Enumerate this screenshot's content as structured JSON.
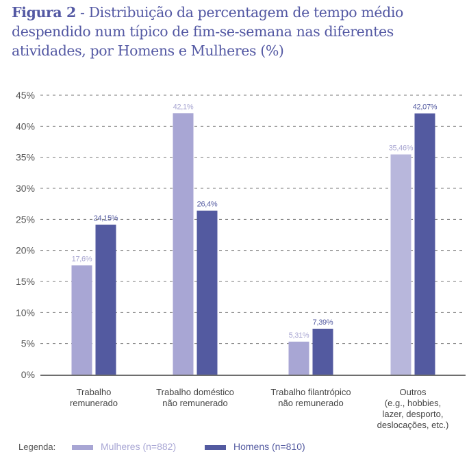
{
  "title": {
    "prefix": "Figura 2",
    "text": " - Distribuição da percentagem de tempo médio despendido num típico de fim-se-semana nas diferentes atividades, por Homens e Mulheres (%)"
  },
  "colors": {
    "mulheres": "#a8a6d4",
    "mulheres_label": "#a9a7d2",
    "homens": "#535aa0",
    "homens_label": "#535aa0",
    "axis_text": "#555555",
    "grid": "#777777"
  },
  "legend": {
    "label": "Legenda:",
    "items": [
      {
        "name": "Mulheres (n=882)",
        "color": "#a8a6d4"
      },
      {
        "name": "Homens (n=810)",
        "color": "#535aa0"
      }
    ]
  },
  "chart_data": {
    "type": "bar",
    "title": "Figura 2 - Distribuição da percentagem de tempo médio despendido num típico de fim-se-semana nas diferentes atividades, por Homens e Mulheres (%)",
    "xlabel": "",
    "ylabel": "",
    "ylim": [
      0,
      45
    ],
    "yticks": [
      0,
      5,
      10,
      15,
      20,
      25,
      30,
      35,
      40,
      45
    ],
    "ytick_labels": [
      "0%",
      "5%",
      "10%",
      "15%",
      "20%",
      "25%",
      "30%",
      "35%",
      "40%",
      "45%"
    ],
    "grid": true,
    "legend_position": "bottom-left",
    "categories": [
      "Trabalho remunerado",
      "Trabalho doméstico não remunerado",
      "Trabalho filantrópico não remunerado",
      "Outros (e.g., hobbies, lazer, desporto, deslocações, etc.)"
    ],
    "category_lines": [
      [
        "Trabalho",
        "remunerado"
      ],
      [
        "Trabalho doméstico",
        "não remunerado"
      ],
      [
        "Trabalho filantrópico",
        "não remunerado"
      ],
      [
        "Outros",
        "(e.g., hobbies,",
        "lazer, desporto,",
        "deslocações, etc.)"
      ]
    ],
    "series": [
      {
        "name": "Mulheres (n=882)",
        "values": [
          17.6,
          42.1,
          5.31,
          35.46
        ],
        "labels": [
          "17,6%",
          "42,1%",
          "5,31%",
          "35,46%"
        ]
      },
      {
        "name": "Homens (n=810)",
        "values": [
          24.15,
          26.4,
          7.39,
          42.07
        ],
        "labels": [
          "24,15%",
          "26,4%",
          "7,39%",
          "42,07%"
        ]
      }
    ]
  }
}
